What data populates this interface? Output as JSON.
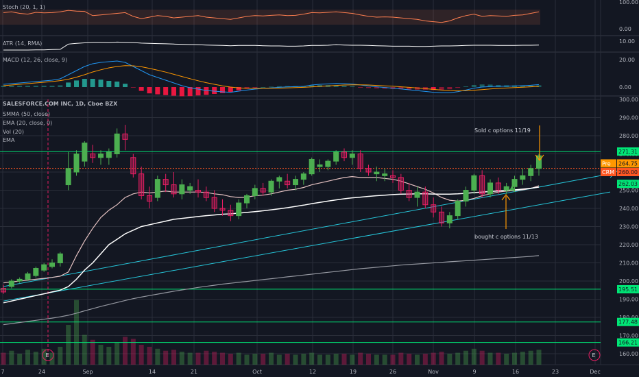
{
  "colors": {
    "background": "#131722",
    "grid": "#2a2e39",
    "up": "#4caf50",
    "down": "#e91e63",
    "hline": "#00e676",
    "price_dotted": "#ff5722",
    "channel": "#26c6da",
    "smma": "#e6c3c3",
    "ema50": "#ffffff",
    "ema_long": "#9598a1",
    "stoch": "#ff7f50",
    "atr": "#ffffff",
    "macd": "#2196f3",
    "signal": "#ff9800",
    "hist_pos": "#26a69a",
    "hist_neg": "#ff1744",
    "arrow": "#ff9800",
    "text": "#b2b5be"
  },
  "panels": {
    "stoch": {
      "label": "Stoch (20, 1, 1)",
      "ticks": [
        "100.00",
        "0.00"
      ]
    },
    "atr": {
      "label": "ATR (14, RMA)",
      "ticks": [
        "10.00"
      ]
    },
    "macd": {
      "label": "MACD (12, 26, close, 9)",
      "ticks": [
        "20.00",
        "0.00"
      ]
    },
    "main": {
      "title": "SALESFORCE.COM INC, 1D, Cboe BZX",
      "legend": [
        "SMMA (50, close)",
        "EMA (20, close, 0)",
        "Vol (20)",
        "EMA"
      ]
    }
  },
  "annotations": {
    "sold": "Sold c options 11/19",
    "bought": "bought c options 11/13"
  },
  "tags": {
    "pre_label": "Pre",
    "pre_value": "264.75",
    "crm_label": "CRM",
    "crm_value": "260.00",
    "ema_value": "262.03"
  },
  "hlines": [
    "271.31",
    "195.51",
    "177.48",
    "166.21"
  ],
  "earnings": [
    "E",
    "E"
  ],
  "chart_data": {
    "type": "candlestick",
    "title": "SALESFORCE.COM INC, 1D, Cboe BZX",
    "ylim": [
      157,
      300
    ],
    "y_ticks": [
      "300.00",
      "290.00",
      "280.00",
      "270.00",
      "260.00",
      "250.00",
      "240.00",
      "230.00",
      "220.00",
      "210.00",
      "200.00",
      "190.00",
      "180.00",
      "170.00",
      "160.00"
    ],
    "x_ticks": [
      "7",
      "24",
      "Sep",
      "14",
      "21",
      "Oct",
      "12",
      "19",
      "26",
      "Nov",
      "9",
      "16",
      "23",
      "Dec"
    ],
    "horizontal_levels": [
      271.31,
      195.51,
      177.48,
      166.21
    ],
    "candles": [
      [
        196,
        198,
        193,
        194
      ],
      [
        197,
        201,
        196,
        200
      ],
      [
        200,
        202,
        199,
        201
      ],
      [
        201,
        205,
        200,
        204
      ],
      [
        203,
        208,
        202,
        207
      ],
      [
        206,
        210,
        205,
        209
      ],
      [
        208,
        212,
        207,
        210
      ],
      [
        210,
        216,
        208,
        215
      ],
      [
        253,
        271,
        250,
        262
      ],
      [
        260,
        272,
        258,
        270
      ],
      [
        266,
        277,
        263,
        276
      ],
      [
        270,
        275,
        265,
        268
      ],
      [
        268,
        272,
        264,
        270
      ],
      [
        268,
        273,
        264,
        271
      ],
      [
        270,
        284,
        268,
        281
      ],
      [
        281,
        286,
        272,
        278
      ],
      [
        268,
        270,
        257,
        259
      ],
      [
        259,
        263,
        245,
        247
      ],
      [
        247,
        252,
        240,
        244
      ],
      [
        246,
        258,
        244,
        256
      ],
      [
        256,
        259,
        249,
        253
      ],
      [
        253,
        260,
        246,
        248
      ],
      [
        248,
        256,
        245,
        253
      ],
      [
        250,
        254,
        248,
        252
      ],
      [
        250,
        256,
        246,
        249
      ],
      [
        249,
        252,
        244,
        246
      ],
      [
        246,
        250,
        238,
        240
      ],
      [
        240,
        245,
        236,
        239
      ],
      [
        239,
        242,
        233,
        236
      ],
      [
        236,
        245,
        234,
        243
      ],
      [
        243,
        248,
        240,
        247
      ],
      [
        247,
        253,
        245,
        251
      ],
      [
        251,
        254,
        247,
        249
      ],
      [
        249,
        256,
        247,
        255
      ],
      [
        255,
        258,
        251,
        257
      ],
      [
        255,
        259,
        251,
        253
      ],
      [
        253,
        258,
        250,
        256
      ],
      [
        256,
        260,
        253,
        259
      ],
      [
        259,
        268,
        258,
        267
      ],
      [
        263,
        267,
        260,
        264
      ],
      [
        263,
        267,
        261,
        266
      ],
      [
        266,
        272,
        264,
        271
      ],
      [
        271,
        273,
        266,
        268
      ],
      [
        268,
        272,
        264,
        270
      ],
      [
        270,
        272,
        260,
        262
      ],
      [
        262,
        264,
        258,
        260
      ],
      [
        259,
        263,
        255,
        260
      ],
      [
        258,
        262,
        255,
        259
      ],
      [
        258,
        261,
        254,
        257
      ],
      [
        257,
        259,
        248,
        250
      ],
      [
        250,
        254,
        244,
        246
      ],
      [
        246,
        252,
        241,
        249
      ],
      [
        249,
        252,
        240,
        242
      ],
      [
        242,
        246,
        235,
        238
      ],
      [
        238,
        241,
        230,
        232
      ],
      [
        232,
        238,
        229,
        236
      ],
      [
        236,
        245,
        234,
        244
      ],
      [
        244,
        252,
        241,
        250
      ],
      [
        250,
        259,
        248,
        258
      ],
      [
        258,
        261,
        246,
        248
      ],
      [
        248,
        256,
        246,
        254
      ],
      [
        254,
        257,
        248,
        250
      ],
      [
        250,
        254,
        248,
        252
      ],
      [
        252,
        258,
        249,
        256
      ],
      [
        256,
        262,
        253,
        258
      ],
      [
        258,
        264,
        255,
        262
      ],
      [
        262,
        270,
        258,
        269
      ]
    ],
    "volume": [
      12,
      14,
      11,
      15,
      13,
      16,
      12,
      18,
      40,
      65,
      30,
      25,
      20,
      18,
      22,
      28,
      26,
      20,
      18,
      16,
      14,
      15,
      13,
      12,
      12,
      14,
      13,
      12,
      11,
      12,
      10,
      11,
      11,
      12,
      10,
      11,
      10,
      11,
      12,
      10,
      10,
      11,
      11,
      10,
      12,
      11,
      10,
      10,
      10,
      12,
      11,
      10,
      11,
      12,
      13,
      11,
      12,
      14,
      16,
      14,
      12,
      12,
      11,
      12,
      13,
      14,
      15
    ],
    "series": [
      {
        "name": "SMMA (50, close)",
        "values": [
          199,
          199.5,
          200,
          200.5,
          201,
          201.5,
          202,
          202.7,
          205,
          214,
          222,
          229,
          235,
          239,
          242,
          246,
          248,
          249,
          248.5,
          249,
          249.5,
          249,
          249,
          249,
          249,
          248.8,
          248,
          247.5,
          246.5,
          246,
          246.2,
          247,
          247.3,
          248,
          249,
          250,
          250.5,
          251.5,
          253,
          254,
          255,
          256,
          257,
          257.5,
          257,
          257,
          257,
          256.5,
          256,
          255,
          253.5,
          252,
          250.5,
          248.5,
          246,
          244.5,
          244,
          244.5,
          245.5,
          247,
          248,
          249,
          249.5,
          249.8,
          250.2,
          251,
          252.5
        ]
      },
      {
        "name": "EMA (20, close, 0)",
        "values": [
          188,
          189,
          190,
          191,
          192,
          193,
          194,
          195,
          197,
          201,
          206,
          210,
          215,
          220,
          223,
          226,
          228,
          230,
          231,
          232,
          233,
          234,
          234.5,
          235,
          235.5,
          236,
          236.4,
          236.8,
          237,
          237.4,
          237.8,
          238.2,
          238.7,
          239.2,
          239.8,
          240.4,
          241.1,
          241.8,
          242.6,
          243.3,
          244,
          244.7,
          245.3,
          245.8,
          246.2,
          246.6,
          247,
          247.3,
          247.6,
          247.8,
          247.9,
          248,
          248,
          247.9,
          247.8,
          247.8,
          248,
          248.3,
          248.7,
          249,
          249.3,
          249.6,
          249.9,
          250.2,
          250.6,
          251.1,
          251.7
        ]
      },
      {
        "name": "EMA",
        "values": [
          176,
          176.6,
          177.2,
          177.8,
          178.4,
          179,
          179.6,
          180.3,
          181.2,
          182.3,
          183.6,
          184.8,
          186,
          187.1,
          188.2,
          189.3,
          190.3,
          191.2,
          192,
          192.8,
          193.6,
          194.4,
          195.1,
          195.8,
          196.5,
          197.1,
          197.7,
          198.3,
          198.8,
          199.3,
          199.8,
          200.3,
          200.8,
          201.3,
          201.8,
          202.3,
          202.8,
          203.3,
          203.8,
          204.3,
          204.8,
          205.3,
          205.8,
          206.3,
          206.8,
          207.2,
          207.6,
          208,
          208.4,
          208.8,
          209.1,
          209.4,
          209.7,
          210,
          210.3,
          210.6,
          210.9,
          211.2,
          211.5,
          211.8,
          212.1,
          212.4,
          212.7,
          213,
          213.3,
          213.6,
          214
        ]
      }
    ],
    "indicators": {
      "stoch": [
        80,
        85,
        75,
        70,
        82,
        78,
        80,
        85,
        95,
        90,
        88,
        60,
        65,
        70,
        75,
        80,
        55,
        40,
        50,
        60,
        55,
        45,
        50,
        55,
        60,
        50,
        45,
        40,
        35,
        45,
        55,
        60,
        58,
        62,
        65,
        60,
        62,
        70,
        80,
        78,
        82,
        85,
        80,
        75,
        65,
        55,
        50,
        52,
        50,
        45,
        40,
        35,
        25,
        20,
        15,
        25,
        45,
        60,
        70,
        55,
        60,
        58,
        55,
        62,
        65,
        75,
        85
      ],
      "atr": [
        7,
        7,
        7,
        7,
        7.1,
        7.1,
        7.2,
        7.3,
        9.5,
        9.8,
        10,
        10.2,
        10.2,
        10.1,
        10.3,
        10.2,
        10.1,
        9.9,
        9.8,
        9.7,
        9.6,
        9.5,
        9.4,
        9.3,
        9.2,
        9.1,
        9,
        8.9,
        8.8,
        8.9,
        8.9,
        8.9,
        8.8,
        8.7,
        8.7,
        8.6,
        8.6,
        8.7,
        8.9,
        8.9,
        9,
        9.2,
        9.1,
        9,
        9,
        8.9,
        8.8,
        8.7,
        8.6,
        8.6,
        8.6,
        8.5,
        8.5,
        8.6,
        8.7,
        8.7,
        8.8,
        8.9,
        9,
        9,
        9,
        8.9,
        8.9,
        8.9,
        9,
        9,
        9.1
      ],
      "macd": [
        2,
        2.5,
        3,
        3.5,
        4,
        4.5,
        5,
        6,
        9,
        12,
        15,
        17,
        18,
        18.5,
        19,
        18,
        15,
        12,
        9,
        7,
        5,
        3,
        1,
        -0.5,
        -1.5,
        -2.5,
        -3,
        -3.5,
        -3.8,
        -3,
        -2.2,
        -1.5,
        -1,
        -0.6,
        -0.2,
        0.1,
        0.3,
        0.5,
        1.5,
        2,
        2.3,
        2.6,
        2.5,
        2.2,
        1.5,
        0.8,
        0.2,
        -0.3,
        -0.8,
        -1.4,
        -2,
        -2.6,
        -3.2,
        -3.8,
        -4.2,
        -4.2,
        -3.4,
        -2.2,
        -0.8,
        0,
        0.4,
        0.5,
        0.6,
        0.8,
        1,
        1.3,
        1.8
      ],
      "signal": [
        1,
        1.5,
        2,
        2.5,
        3,
        3.5,
        4,
        4.7,
        5.7,
        7.2,
        9,
        11,
        12.6,
        14,
        15,
        15.6,
        15.5,
        14.8,
        13.6,
        12.3,
        10.9,
        9.3,
        7.7,
        6.1,
        4.6,
        3.2,
        2,
        0.9,
        0,
        -0.6,
        -0.9,
        -1,
        -1,
        -0.9,
        -0.8,
        -0.6,
        -0.4,
        -0.2,
        0.1,
        0.5,
        0.8,
        1.2,
        1.5,
        1.6,
        1.6,
        1.5,
        1.2,
        0.9,
        0.6,
        0.2,
        -0.2,
        -0.7,
        -1.2,
        -1.7,
        -2.2,
        -2.6,
        -2.8,
        -2.7,
        -2.3,
        -1.9,
        -1.4,
        -1,
        -0.7,
        -0.4,
        -0.1,
        0.2,
        0.5
      ]
    }
  }
}
